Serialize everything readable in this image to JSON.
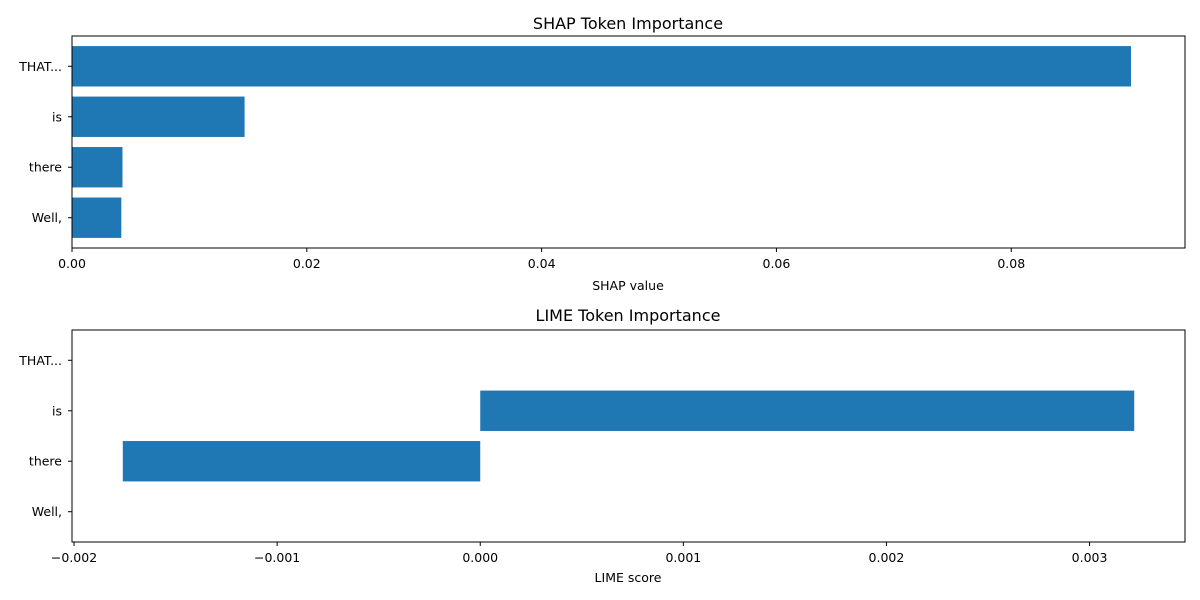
{
  "chart_data": [
    {
      "type": "bar",
      "orientation": "horizontal",
      "title": "SHAP Token Importance",
      "xlabel": "SHAP value",
      "ylabel": "",
      "categories": [
        "THAT...",
        "is",
        "there",
        "Well,"
      ],
      "values": [
        0.0902,
        0.0147,
        0.0043,
        0.0042
      ],
      "xlim": [
        0.0,
        0.0948
      ],
      "xticks": [
        0.0,
        0.02,
        0.04,
        0.06,
        0.08
      ],
      "xtick_labels": [
        "0.00",
        "0.02",
        "0.04",
        "0.06",
        "0.08"
      ],
      "grid": false,
      "color": "#1f77b4"
    },
    {
      "type": "bar",
      "orientation": "horizontal",
      "title": "LIME Token Importance",
      "xlabel": "LIME score",
      "ylabel": "",
      "categories": [
        "THAT...",
        "is",
        "there",
        "Well,"
      ],
      "values": [
        0.0,
        0.00322,
        -0.00176,
        0.0
      ],
      "xlim": [
        -0.00201,
        0.00347
      ],
      "xticks": [
        -0.002,
        -0.001,
        0.0,
        0.001,
        0.002,
        0.003
      ],
      "xtick_labels": [
        "−0.002",
        "−0.001",
        "0.000",
        "0.001",
        "0.002",
        "0.003"
      ],
      "grid": false,
      "color": "#1f77b4"
    }
  ]
}
